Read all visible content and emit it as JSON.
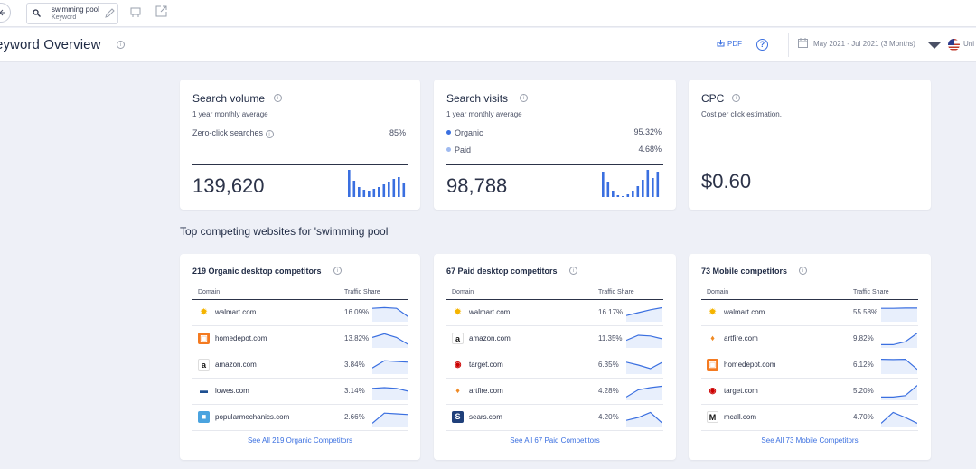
{
  "topbar": {
    "keyword": "swimming pool",
    "keyword_type": "Keyword"
  },
  "header": {
    "title": "eyword Overview",
    "pdf_label": "PDF",
    "help_label": "?",
    "date_range": "May 2021 - Jul 2021 (3 Months)",
    "country": "Uni"
  },
  "colors": {
    "accent": "#3a6fe0",
    "organic": "#3a6fe0",
    "paid": "#9fbaf0"
  },
  "search_volume": {
    "title": "Search volume",
    "subtitle": "1 year monthly average",
    "zero_click_label": "Zero-click searches",
    "zero_click_value": "85%",
    "value": "139,620",
    "bars": [
      30,
      18,
      11,
      8,
      7,
      9,
      11,
      14,
      17,
      20,
      22,
      15
    ]
  },
  "search_visits": {
    "title": "Search visits",
    "subtitle": "1 year monthly average",
    "organic_label": "Organic",
    "organic_value": "95.32%",
    "paid_label": "Paid",
    "paid_value": "4.68%",
    "value": "98,788",
    "bars": [
      28,
      17,
      7,
      2,
      1,
      3,
      7,
      12,
      19,
      30,
      21,
      28
    ]
  },
  "cpc": {
    "title": "CPC",
    "subtitle": "Cost per click estimation.",
    "value": "$0.60"
  },
  "competitors_title": "Top competing websites for 'swimming pool'",
  "columns": {
    "domain": "Domain",
    "traffic_share": "Traffic Share"
  },
  "panels": [
    {
      "title": "219 Organic desktop competitors",
      "see_all": "See All 219 Organic Competitors",
      "rows": [
        {
          "icon": "walmart-icon",
          "domain": "walmart.com",
          "share": "16.09%",
          "trend": [
            0.8,
            0.85,
            0.8,
            0.2
          ]
        },
        {
          "icon": "homedepot-icon",
          "domain": "homedepot.com",
          "share": "13.82%",
          "trend": [
            0.6,
            0.85,
            0.6,
            0.1
          ]
        },
        {
          "icon": "amazon-icon",
          "domain": "amazon.com",
          "share": "3.84%",
          "trend": [
            0.3,
            0.8,
            0.75,
            0.7
          ]
        },
        {
          "icon": "lowes-icon",
          "domain": "lowes.com",
          "share": "3.14%",
          "trend": [
            0.7,
            0.75,
            0.7,
            0.5
          ]
        },
        {
          "icon": "popularmechanics-icon",
          "domain": "popularmechanics.com",
          "share": "2.66%",
          "trend": [
            0.1,
            0.8,
            0.75,
            0.7
          ]
        }
      ]
    },
    {
      "title": "67 Paid desktop competitors",
      "see_all": "See All 67 Paid Competitors",
      "rows": [
        {
          "icon": "walmart-icon",
          "domain": "walmart.com",
          "share": "16.17%",
          "trend": [
            0.3,
            0.5,
            0.7,
            0.85
          ]
        },
        {
          "icon": "amazon-icon",
          "domain": "amazon.com",
          "share": "11.35%",
          "trend": [
            0.4,
            0.75,
            0.7,
            0.5
          ]
        },
        {
          "icon": "target-icon",
          "domain": "target.com",
          "share": "6.35%",
          "trend": [
            0.7,
            0.5,
            0.25,
            0.7
          ]
        },
        {
          "icon": "artfire-icon",
          "domain": "artfire.com",
          "share": "4.28%",
          "trend": [
            0.1,
            0.6,
            0.75,
            0.85
          ]
        },
        {
          "icon": "sears-icon",
          "domain": "sears.com",
          "share": "4.20%",
          "trend": [
            0.3,
            0.5,
            0.85,
            0.1
          ]
        }
      ]
    },
    {
      "title": "73 Mobile competitors",
      "see_all": "See All 73 Mobile Competitors",
      "rows": [
        {
          "icon": "walmart-icon",
          "domain": "walmart.com",
          "share": "55.58%",
          "trend": [
            0.8,
            0.8,
            0.82,
            0.82
          ]
        },
        {
          "icon": "artfire-icon",
          "domain": "artfire.com",
          "share": "9.82%",
          "trend": [
            0.1,
            0.1,
            0.3,
            0.9
          ]
        },
        {
          "icon": "homedepot-icon",
          "domain": "homedepot.com",
          "share": "6.12%",
          "trend": [
            0.9,
            0.88,
            0.9,
            0.2
          ]
        },
        {
          "icon": "target-icon",
          "domain": "target.com",
          "share": "5.20%",
          "trend": [
            0.1,
            0.1,
            0.2,
            0.9
          ]
        },
        {
          "icon": "mcall-icon",
          "domain": "mcall.com",
          "share": "4.70%",
          "trend": [
            0.1,
            0.85,
            0.5,
            0.1
          ]
        }
      ]
    }
  ]
}
